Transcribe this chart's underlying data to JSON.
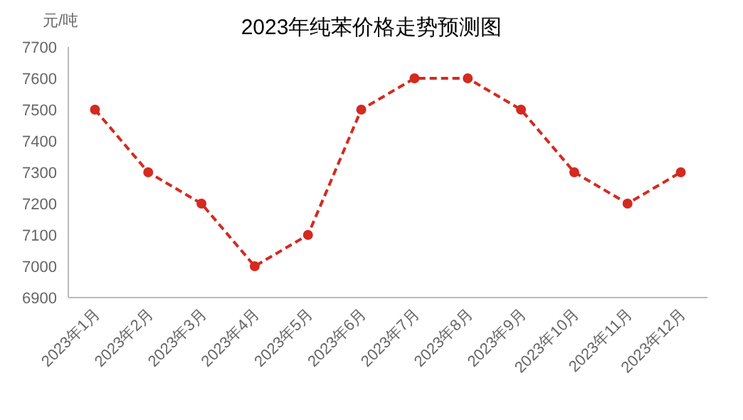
{
  "chart_data": {
    "type": "line",
    "title": "2023年纯苯价格走势预测图",
    "ylabel": "元/吨",
    "categories": [
      "2023年1月",
      "2023年2月",
      "2023年3月",
      "2023年4月",
      "2023年5月",
      "2023年6月",
      "2023年7月",
      "2023年8月",
      "2023年9月",
      "2023年10月",
      "2023年11月",
      "2023年12月"
    ],
    "values": [
      7500,
      7300,
      7200,
      7000,
      7100,
      7500,
      7600,
      7600,
      7500,
      7300,
      7200,
      7300
    ],
    "color": "#d42a20",
    "ylim": [
      6900,
      7700
    ],
    "yticks": [
      6900,
      7000,
      7100,
      7200,
      7300,
      7400,
      7500,
      7600,
      7700
    ],
    "marker": "circle",
    "line_style": "dashed",
    "grid": false
  }
}
